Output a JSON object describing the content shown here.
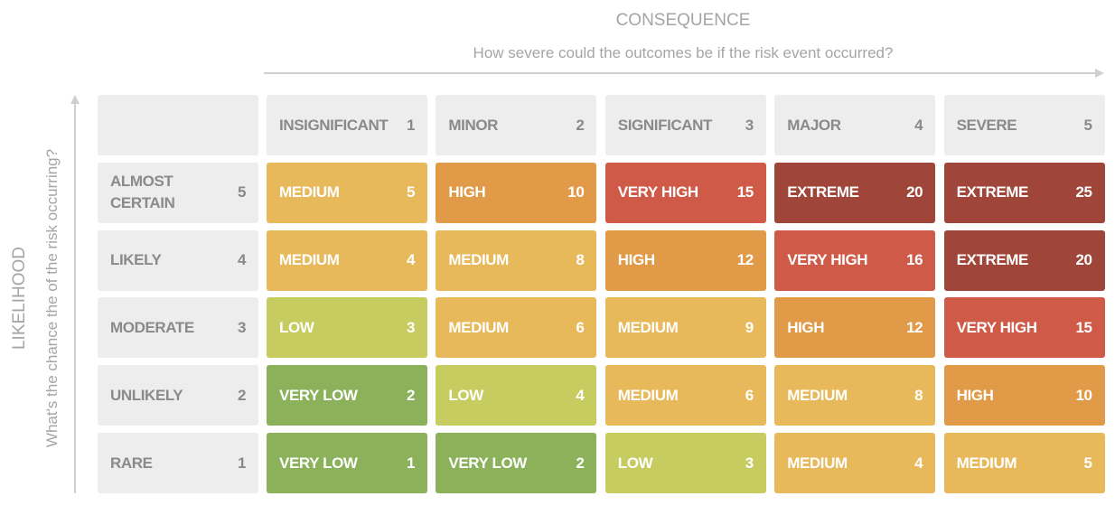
{
  "consequence": {
    "title": "CONSEQUENCE",
    "subtitle": "How severe could the outcomes be if the risk event occurred?"
  },
  "likelihood": {
    "title": "LIKELIHOOD",
    "subtitle": "What's the chance the of the risk occurring?"
  },
  "columns": [
    {
      "label": "INSIGNIFICANT",
      "score": 1
    },
    {
      "label": "MINOR",
      "score": 2
    },
    {
      "label": "SIGNIFICANT",
      "score": 3
    },
    {
      "label": "MAJOR",
      "score": 4
    },
    {
      "label": "SEVERE",
      "score": 5
    }
  ],
  "rows": [
    {
      "label": "ALMOST CERTAIN",
      "score": 5,
      "cells": [
        {
          "label": "MEDIUM",
          "score": 5,
          "color": "#e8b95a"
        },
        {
          "label": "HIGH",
          "score": 10,
          "color": "#e09a48"
        },
        {
          "label": "VERY HIGH",
          "score": 15,
          "color": "#cf5a48"
        },
        {
          "label": "EXTREME",
          "score": 20,
          "color": "#9f4539"
        },
        {
          "label": "EXTREME",
          "score": 25,
          "color": "#9f4539"
        }
      ]
    },
    {
      "label": "LIKELY",
      "score": 4,
      "cells": [
        {
          "label": "MEDIUM",
          "score": 4,
          "color": "#e8b95a"
        },
        {
          "label": "MEDIUM",
          "score": 8,
          "color": "#e8b95a"
        },
        {
          "label": "HIGH",
          "score": 12,
          "color": "#e09a48"
        },
        {
          "label": "VERY HIGH",
          "score": 16,
          "color": "#cf5a48"
        },
        {
          "label": "EXTREME",
          "score": 20,
          "color": "#9f4539"
        }
      ]
    },
    {
      "label": "MODERATE",
      "score": 3,
      "cells": [
        {
          "label": "LOW",
          "score": 3,
          "color": "#c6cc60"
        },
        {
          "label": "MEDIUM",
          "score": 6,
          "color": "#e8b95a"
        },
        {
          "label": "MEDIUM",
          "score": 9,
          "color": "#e8b95a"
        },
        {
          "label": "HIGH",
          "score": 12,
          "color": "#e09a48"
        },
        {
          "label": "VERY HIGH",
          "score": 15,
          "color": "#cf5a48"
        }
      ]
    },
    {
      "label": "UNLIKELY",
      "score": 2,
      "cells": [
        {
          "label": "VERY LOW",
          "score": 2,
          "color": "#8bb15a"
        },
        {
          "label": "LOW",
          "score": 4,
          "color": "#c6cc60"
        },
        {
          "label": "MEDIUM",
          "score": 6,
          "color": "#e8b95a"
        },
        {
          "label": "MEDIUM",
          "score": 8,
          "color": "#e8b95a"
        },
        {
          "label": "HIGH",
          "score": 10,
          "color": "#e09a48"
        }
      ]
    },
    {
      "label": "RARE",
      "score": 1,
      "cells": [
        {
          "label": "VERY LOW",
          "score": 1,
          "color": "#8bb15a"
        },
        {
          "label": "VERY LOW",
          "score": 2,
          "color": "#8bb15a"
        },
        {
          "label": "LOW",
          "score": 3,
          "color": "#c6cc60"
        },
        {
          "label": "MEDIUM",
          "score": 4,
          "color": "#e8b95a"
        },
        {
          "label": "MEDIUM",
          "score": 5,
          "color": "#e8b95a"
        }
      ]
    }
  ]
}
